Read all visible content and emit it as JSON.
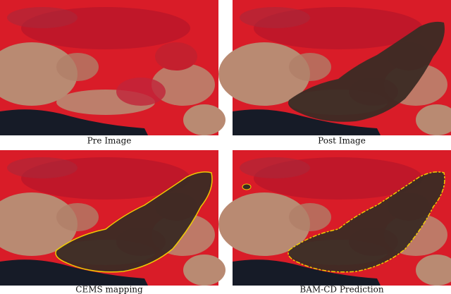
{
  "panels": [
    {
      "caption": "Pre Image"
    },
    {
      "caption": "Post Image"
    },
    {
      "caption": "CEMS mapping"
    },
    {
      "caption": "BAM-CD Prediction"
    }
  ]
}
